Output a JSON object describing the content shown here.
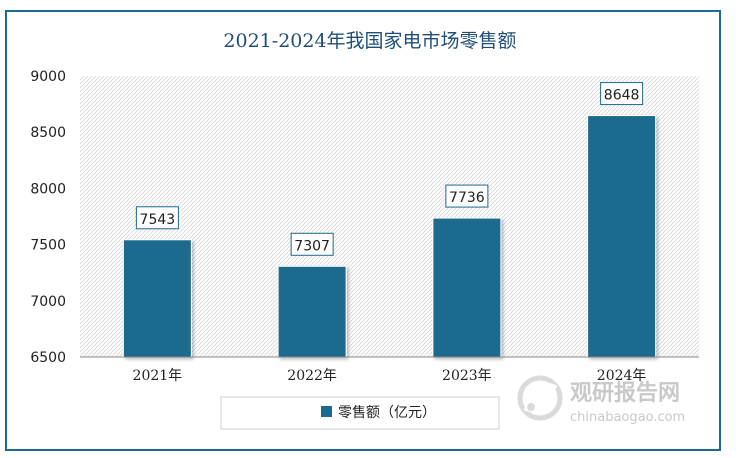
{
  "chart_data": {
    "type": "bar",
    "title": "2021-2024年我国家电市场零售额",
    "categories": [
      "2021年",
      "2022年",
      "2023年",
      "2024年"
    ],
    "series": [
      {
        "name": "零售额（亿元）",
        "values": [
          7543,
          7307,
          7736,
          8648
        ]
      }
    ],
    "data_labels": [
      "7543",
      "7307",
      "7736",
      "8648"
    ],
    "ylim": [
      6500,
      9000
    ],
    "yticks": [
      6500,
      7000,
      7500,
      8000,
      8500,
      9000
    ],
    "ytick_labels": [
      "6500",
      "7000",
      "7500",
      "8000",
      "8500",
      "9000"
    ],
    "grid": false,
    "legend_position": "bottom",
    "colors": {
      "bar": "#1c6a8e",
      "title": "#1f4e79",
      "frame": "#1c6a8e"
    }
  },
  "watermark": {
    "text_cn": "观研报告网",
    "text_en": "chinabaogao.com"
  }
}
